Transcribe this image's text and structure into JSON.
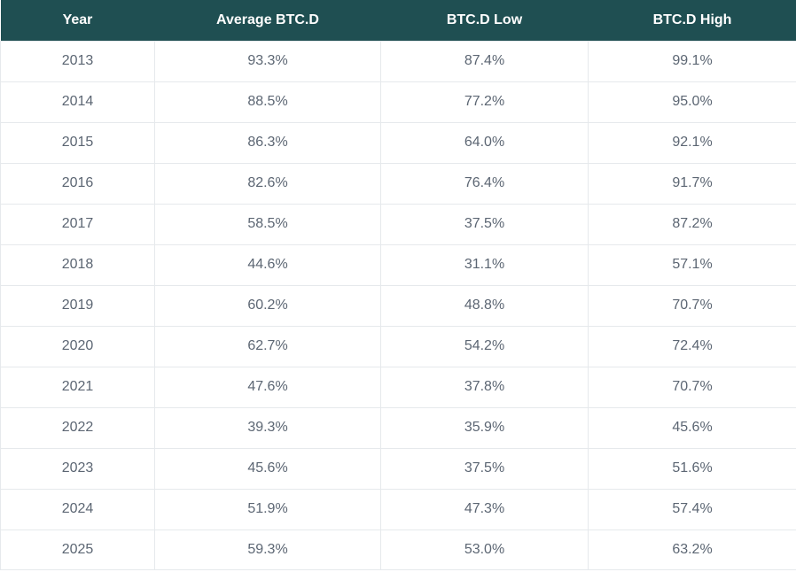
{
  "table": {
    "headers": [
      "Year",
      "Average BTC.D",
      "BTC.D Low",
      "BTC.D High"
    ],
    "rows": [
      [
        "2013",
        "93.3%",
        "87.4%",
        "99.1%"
      ],
      [
        "2014",
        "88.5%",
        "77.2%",
        "95.0%"
      ],
      [
        "2015",
        "86.3%",
        "64.0%",
        "92.1%"
      ],
      [
        "2016",
        "82.6%",
        "76.4%",
        "91.7%"
      ],
      [
        "2017",
        "58.5%",
        "37.5%",
        "87.2%"
      ],
      [
        "2018",
        "44.6%",
        "31.1%",
        "57.1%"
      ],
      [
        "2019",
        "60.2%",
        "48.8%",
        "70.7%"
      ],
      [
        "2020",
        "62.7%",
        "54.2%",
        "72.4%"
      ],
      [
        "2021",
        "47.6%",
        "37.8%",
        "70.7%"
      ],
      [
        "2022",
        "39.3%",
        "35.9%",
        "45.6%"
      ],
      [
        "2023",
        "45.6%",
        "37.5%",
        "51.6%"
      ],
      [
        "2024",
        "51.9%",
        "47.3%",
        "57.4%"
      ],
      [
        "2025",
        "59.3%",
        "53.0%",
        "63.2%"
      ]
    ]
  },
  "colors": {
    "header_background": "#1f4f52",
    "header_text": "#ffffff",
    "cell_text": "#5c6673",
    "grid_line": "#e6e9ec"
  }
}
